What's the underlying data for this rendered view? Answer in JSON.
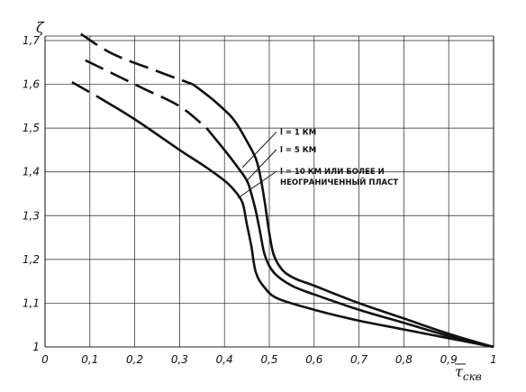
{
  "chart_data": {
    "type": "line",
    "xlabel": "τ",
    "xlabel_sub": "скв",
    "ylabel": "ζ",
    "xlim": [
      0,
      1
    ],
    "ylim": [
      1,
      1.7
    ],
    "grid": true,
    "x_ticks": [
      "0",
      "0,1",
      "0,2",
      "0,3",
      "0,4",
      "0,5",
      "0,6",
      "0,7",
      "0,8",
      "0,9",
      "1"
    ],
    "y_ticks": [
      "1",
      "1,1",
      "1,2",
      "1,3",
      "1,4",
      "1,5",
      "1,6",
      "1,7"
    ],
    "series": [
      {
        "name": "l = 1 КМ",
        "dashed_x_max": 0.33,
        "points": [
          [
            0.08,
            1.715
          ],
          [
            0.15,
            1.67
          ],
          [
            0.25,
            1.63
          ],
          [
            0.33,
            1.6
          ],
          [
            0.38,
            1.56
          ],
          [
            0.42,
            1.52
          ],
          [
            0.45,
            1.47
          ],
          [
            0.47,
            1.43
          ],
          [
            0.48,
            1.39
          ],
          [
            0.49,
            1.33
          ],
          [
            0.5,
            1.26
          ],
          [
            0.51,
            1.21
          ],
          [
            0.53,
            1.175
          ],
          [
            0.56,
            1.155
          ],
          [
            0.6,
            1.14
          ],
          [
            0.7,
            1.1
          ],
          [
            0.8,
            1.065
          ],
          [
            0.9,
            1.03
          ],
          [
            1.0,
            1.0
          ]
        ]
      },
      {
        "name": "l = 5 КМ",
        "dashed_x_max": 0.34,
        "points": [
          [
            0.09,
            1.655
          ],
          [
            0.15,
            1.625
          ],
          [
            0.22,
            1.59
          ],
          [
            0.3,
            1.55
          ],
          [
            0.36,
            1.5
          ],
          [
            0.4,
            1.45
          ],
          [
            0.43,
            1.41
          ],
          [
            0.45,
            1.38
          ],
          [
            0.46,
            1.35
          ],
          [
            0.47,
            1.31
          ],
          [
            0.48,
            1.26
          ],
          [
            0.49,
            1.21
          ],
          [
            0.51,
            1.17
          ],
          [
            0.55,
            1.14
          ],
          [
            0.6,
            1.12
          ],
          [
            0.7,
            1.085
          ],
          [
            0.8,
            1.055
          ],
          [
            0.9,
            1.025
          ],
          [
            1.0,
            1.0
          ]
        ]
      },
      {
        "name": "l = 10 КМ ИЛИ БОЛЕЕ И НЕОГРАНИЧЕННЫЙ ПЛАСТ",
        "dashed_x_max": 0.12,
        "points": [
          [
            0.06,
            1.605
          ],
          [
            0.12,
            1.57
          ],
          [
            0.2,
            1.52
          ],
          [
            0.3,
            1.45
          ],
          [
            0.36,
            1.41
          ],
          [
            0.4,
            1.38
          ],
          [
            0.42,
            1.36
          ],
          [
            0.44,
            1.33
          ],
          [
            0.45,
            1.28
          ],
          [
            0.46,
            1.23
          ],
          [
            0.47,
            1.17
          ],
          [
            0.49,
            1.135
          ],
          [
            0.52,
            1.11
          ],
          [
            0.6,
            1.085
          ],
          [
            0.7,
            1.06
          ],
          [
            0.8,
            1.04
          ],
          [
            0.9,
            1.02
          ],
          [
            1.0,
            1.0
          ]
        ]
      }
    ],
    "annotations": [
      {
        "lines": [
          "l = 1 КМ"
        ],
        "anchor": [
          0.52,
          1.485
        ],
        "leader_to": [
          0.44,
          1.41
        ]
      },
      {
        "lines": [
          "l = 5 КМ"
        ],
        "anchor": [
          0.52,
          1.445
        ],
        "leader_to": [
          0.45,
          1.38
        ]
      },
      {
        "lines": [
          "l = 10 КМ ИЛИ БОЛЕЕ И",
          "НЕОГРАНИЧЕННЫЙ ПЛАСТ"
        ],
        "anchor": [
          0.52,
          1.395
        ],
        "leader_to": [
          0.43,
          1.34
        ]
      }
    ]
  }
}
